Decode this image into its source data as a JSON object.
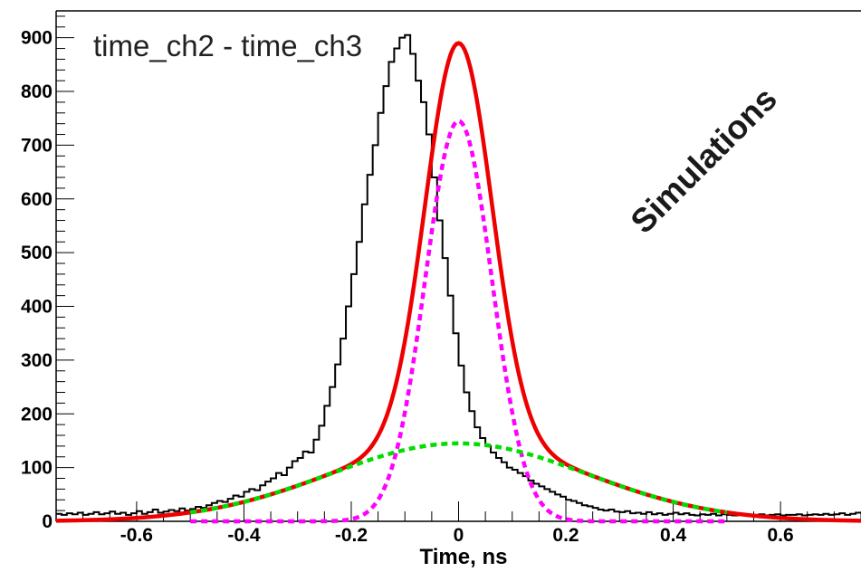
{
  "chart_data": {
    "type": "histogram",
    "title": "time_ch2 - time_ch3",
    "xlabel": "Time, ns",
    "ylabel": "",
    "annotation": "Simulations",
    "xlim": [
      -0.75,
      0.75
    ],
    "ylim": [
      0,
      950
    ],
    "x_ticks": [
      -0.6,
      -0.4,
      -0.2,
      0,
      0.2,
      0.4,
      0.6
    ],
    "x_tick_labels": [
      "-0.6",
      "-0.4",
      "-0.2",
      "0",
      "0.2",
      "0.4",
      "0.6"
    ],
    "y_ticks": [
      0,
      100,
      200,
      300,
      400,
      500,
      600,
      700,
      800,
      900
    ],
    "y_tick_labels": [
      "0",
      "100",
      "200",
      "300",
      "400",
      "500",
      "600",
      "700",
      "800",
      "900"
    ],
    "histogram": {
      "bin_width": 0.01,
      "x_start": -0.75,
      "counts": [
        14,
        12,
        15,
        13,
        16,
        12,
        14,
        17,
        13,
        15,
        18,
        14,
        16,
        12,
        15,
        19,
        14,
        17,
        22,
        16,
        18,
        21,
        19,
        24,
        20,
        23,
        27,
        25,
        30,
        34,
        38,
        36,
        42,
        48,
        46,
        55,
        60,
        58,
        67,
        74,
        80,
        90,
        86,
        100,
        112,
        118,
        130,
        128,
        152,
        178,
        215,
        250,
        292,
        340,
        400,
        460,
        520,
        590,
        645,
        700,
        760,
        810,
        855,
        880,
        900,
        905,
        870,
        820,
        780,
        720,
        640,
        560,
        490,
        420,
        350,
        290,
        240,
        205,
        175,
        155,
        140,
        128,
        118,
        110,
        100,
        96,
        90,
        84,
        76,
        70,
        65,
        60,
        55,
        50,
        46,
        40,
        38,
        34,
        30,
        28,
        25,
        22,
        20,
        22,
        18,
        17,
        19,
        15,
        16,
        14,
        17,
        13,
        15,
        12,
        14,
        16,
        13,
        15,
        12,
        11,
        13,
        12,
        14,
        11,
        13,
        12,
        11,
        13,
        12,
        11,
        12,
        13,
        11,
        12,
        13,
        11,
        12,
        12,
        13,
        11,
        12,
        13,
        12,
        14,
        12,
        13,
        15,
        12,
        14,
        16
      ]
    },
    "series": [
      {
        "type": "fit-total",
        "color": "#ee0000",
        "style": "solid",
        "x_range": [
          -0.75,
          0.75
        ],
        "components": [
          "narrow-gaussian",
          "wide-gaussian"
        ]
      },
      {
        "type": "narrow-gaussian",
        "color": "#ff00ff",
        "style": "dashed",
        "amplitude": 745,
        "mean": 0.0,
        "sigma": 0.062,
        "x_range": [
          -0.5,
          0.5
        ]
      },
      {
        "type": "wide-gaussian",
        "color": "#00dd00",
        "style": "dashed",
        "amplitude": 145,
        "mean": 0.0,
        "sigma": 0.24,
        "x_range": [
          -0.5,
          0.5
        ]
      }
    ],
    "grid": false,
    "legend": "none",
    "colors": {
      "histogram": "#000000",
      "fit": "#ee0000",
      "narrow": "#ff00ff",
      "wide": "#00dd00",
      "axis": "#000000"
    }
  }
}
